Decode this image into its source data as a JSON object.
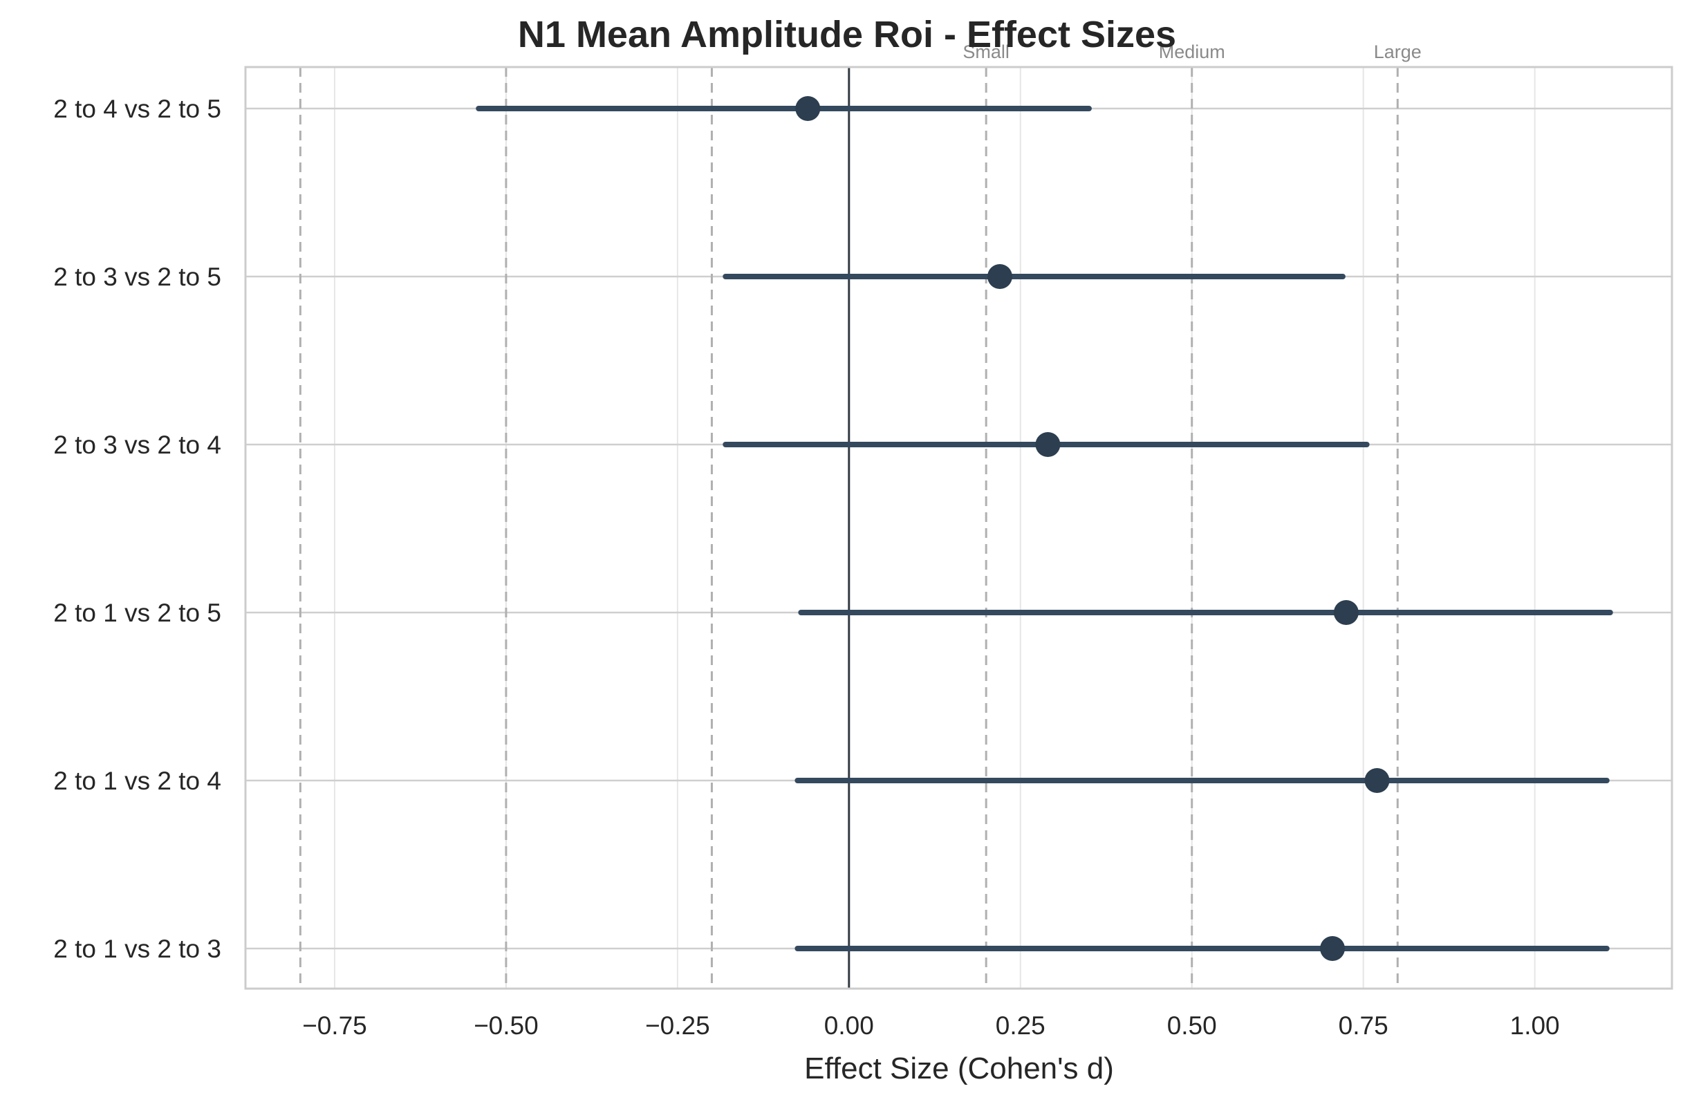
{
  "chart_data": {
    "type": "forest",
    "title": "N1 Mean Amplitude Roi - Effect Sizes",
    "xlabel": "Effect Size (Cohen's d)",
    "ylabel": "",
    "xlim": [
      -0.88,
      1.2
    ],
    "xticks": [
      -0.75,
      -0.5,
      -0.25,
      0.0,
      0.25,
      0.5,
      0.75,
      1.0
    ],
    "xtick_labels": [
      "−0.75",
      "−0.50",
      "−0.25",
      "0.00",
      "0.25",
      "0.50",
      "0.75",
      "1.00"
    ],
    "grid": true,
    "comparisons": [
      {
        "label": "2 to 4 vs 2 to 5",
        "d": -0.06,
        "ci_low": -0.54,
        "ci_high": 0.35
      },
      {
        "label": "2 to 3 vs 2 to 5",
        "d": 0.22,
        "ci_low": -0.18,
        "ci_high": 0.72
      },
      {
        "label": "2 to 3 vs 2 to 4",
        "d": 0.29,
        "ci_low": -0.18,
        "ci_high": 0.755
      },
      {
        "label": "2 to 1 vs 2 to 5",
        "d": 0.725,
        "ci_low": -0.07,
        "ci_high": 1.11
      },
      {
        "label": "2 to 1 vs 2 to 4",
        "d": 0.77,
        "ci_low": -0.075,
        "ci_high": 1.105
      },
      {
        "label": "2 to 1 vs 2 to 3",
        "d": 0.705,
        "ci_low": -0.075,
        "ci_high": 1.105
      }
    ],
    "reference_lines": [
      {
        "x": -0.8,
        "label": ""
      },
      {
        "x": -0.5,
        "label": ""
      },
      {
        "x": -0.2,
        "label": ""
      },
      {
        "x": 0.2,
        "label": "Small"
      },
      {
        "x": 0.5,
        "label": "Medium"
      },
      {
        "x": 0.8,
        "label": "Large"
      }
    ],
    "zero_line": 0.0,
    "colors": {
      "point": "#2c3e50",
      "ci": "#34495e",
      "zero_line": "#333a42",
      "reference": "#b0b0b0",
      "grid": "#e6e6e6",
      "spine": "#cccccc"
    }
  }
}
